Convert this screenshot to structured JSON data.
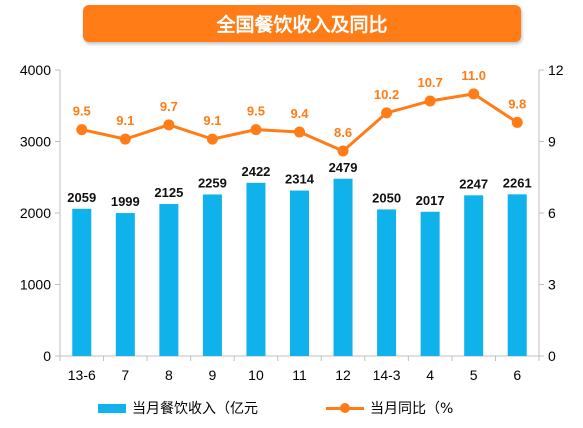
{
  "chart_data": {
    "type": "bar+line",
    "title": "全国餐饮收入及同比",
    "categories": [
      "13-6",
      "7",
      "8",
      "9",
      "10",
      "11",
      "12",
      "14-3",
      "4",
      "5",
      "6"
    ],
    "series": [
      {
        "name": "当月餐饮收入（亿元",
        "type": "bar",
        "axis": "left",
        "values": [
          2059,
          1999,
          2125,
          2259,
          2422,
          2314,
          2479,
          2050,
          2017,
          2247,
          2261
        ],
        "labels": [
          "2059",
          "1999",
          "2125",
          "2259",
          "2422",
          "2314",
          "2479",
          "2050",
          "2017",
          "2247",
          "2261"
        ]
      },
      {
        "name": "当月同比（%",
        "type": "line",
        "axis": "right",
        "values": [
          9.5,
          9.1,
          9.7,
          9.1,
          9.5,
          9.4,
          8.6,
          10.2,
          10.7,
          11.0,
          9.8
        ],
        "labels": [
          "9.5",
          "9.1",
          "9.7",
          "9.1",
          "9.5",
          "9.4",
          "8.6",
          "10.2",
          "10.7",
          "11.0",
          "9.8"
        ]
      }
    ],
    "y_left": {
      "ylim": [
        0,
        4000
      ],
      "ticks": [
        "0",
        "1000",
        "2000",
        "3000",
        "4000"
      ],
      "tick_values": [
        0,
        1000,
        2000,
        3000,
        4000
      ]
    },
    "y_right": {
      "ylim": [
        0,
        12
      ],
      "ticks": [
        "0",
        "3",
        "6",
        "9",
        "12"
      ],
      "tick_values": [
        0,
        3,
        6,
        9,
        12
      ]
    },
    "legend_position": "bottom",
    "grid": false,
    "colors": {
      "bar": "#0fb2ea",
      "line": "#ff7c16",
      "title_bg": "#ff7c16",
      "axis": "#bfbfbf"
    }
  }
}
